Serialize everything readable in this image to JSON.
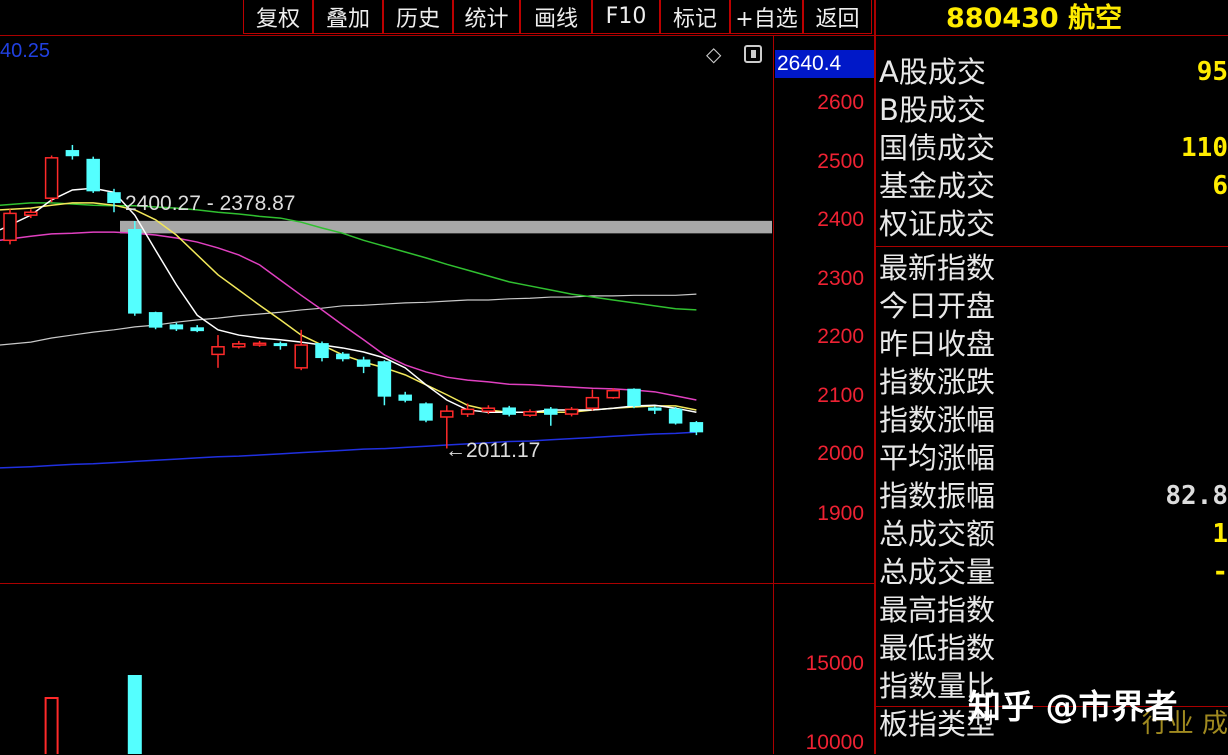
{
  "toolbar": {
    "buttons": [
      "复权",
      "叠加",
      "历史",
      "统计",
      "画线",
      "F10",
      "标记",
      "+自选",
      "返回"
    ]
  },
  "chart_header": {
    "ma_text_partial": "40.25",
    "diamond_icon": "diamond-icon",
    "toggle_icon": "square-toggle-icon"
  },
  "price_cursor": "2640.4",
  "annotations": {
    "range_label": "2400.27 - 2378.87",
    "low_label": "←2011.17"
  },
  "colors": {
    "up": "#ff2a2a",
    "down": "#54ffff",
    "ma5": "#ffffff",
    "ma10": "#f2e85a",
    "ma20": "#e040c0",
    "ma60": "#30c030",
    "ma120": "#c8c8c8",
    "ma250": "#2030e0",
    "axis": "#e02020",
    "band": "#a8a8a8"
  },
  "chart_data": {
    "type": "candlestick",
    "price_axis": {
      "ticks": [
        2600,
        2500,
        2400,
        2300,
        2200,
        2100,
        2000,
        1900
      ]
    },
    "volume_axis": {
      "ticks": [
        15000,
        10000
      ]
    },
    "range_band": [
      2378.87,
      2400.27
    ],
    "low_mark": 2011.17,
    "candles": [
      [
        2367,
        2420,
        2360,
        2413
      ],
      [
        2410,
        2420,
        2405,
        2415
      ],
      [
        2439,
        2512,
        2432,
        2508
      ],
      [
        2520,
        2530,
        2505,
        2512
      ],
      [
        2505,
        2510,
        2448,
        2452
      ],
      [
        2448,
        2455,
        2415,
        2432
      ],
      [
        2385,
        2400,
        2238,
        2243
      ],
      [
        2243,
        2245,
        2215,
        2219
      ],
      [
        2222,
        2226,
        2212,
        2216
      ],
      [
        2217,
        2222,
        2210,
        2213
      ],
      [
        2172,
        2205,
        2149,
        2185
      ],
      [
        2185,
        2195,
        2182,
        2190
      ],
      [
        2188,
        2195,
        2185,
        2191
      ],
      [
        2190,
        2194,
        2180,
        2188
      ],
      [
        2149,
        2214,
        2145,
        2188
      ],
      [
        2190,
        2194,
        2160,
        2167
      ],
      [
        2172,
        2176,
        2160,
        2165
      ],
      [
        2162,
        2168,
        2140,
        2152
      ],
      [
        2159,
        2162,
        2085,
        2101
      ],
      [
        2102,
        2108,
        2090,
        2094
      ],
      [
        2087,
        2090,
        2056,
        2060
      ],
      [
        2065,
        2085,
        2011.17,
        2075
      ],
      [
        2070,
        2088,
        2065,
        2078
      ],
      [
        2075,
        2085,
        2070,
        2080
      ],
      [
        2080,
        2084,
        2066,
        2070
      ],
      [
        2068,
        2078,
        2065,
        2074
      ],
      [
        2078,
        2082,
        2050,
        2070
      ],
      [
        2070,
        2082,
        2066,
        2078
      ],
      [
        2080,
        2112,
        2076,
        2098
      ],
      [
        2098,
        2114,
        2096,
        2110
      ],
      [
        2112,
        2114,
        2080,
        2085
      ],
      [
        2080,
        2083,
        2070,
        2077
      ],
      [
        2078,
        2082,
        2052,
        2055
      ],
      [
        2055,
        2058,
        2034,
        2040
      ]
    ],
    "ma": {
      "ma5": [
        2385,
        2410,
        2436,
        2453,
        2456,
        2449,
        2410,
        2350,
        2291,
        2239,
        2214,
        2205,
        2200,
        2197,
        2193,
        2188,
        2183,
        2176,
        2166,
        2149,
        2120,
        2094,
        2077,
        2073,
        2073,
        2073,
        2077,
        2077,
        2077,
        2080,
        2084,
        2085,
        2080,
        2073
      ],
      "ma10": [
        2419,
        2422,
        2427,
        2431,
        2431,
        2427,
        2419,
        2402,
        2376,
        2342,
        2308,
        2282,
        2256,
        2231,
        2205,
        2188,
        2171,
        2159,
        2149,
        2137,
        2120,
        2103,
        2085,
        2077,
        2073,
        2073,
        2073,
        2073,
        2077,
        2080,
        2082,
        2084,
        2084,
        2077
      ],
      "ma20": [
        2367,
        2374,
        2378,
        2379,
        2381,
        2381,
        2379,
        2376,
        2371,
        2364,
        2354,
        2342,
        2325,
        2299,
        2273,
        2248,
        2222,
        2197,
        2171,
        2154,
        2142,
        2133,
        2128,
        2125,
        2121,
        2120,
        2118,
        2116,
        2114,
        2113,
        2111,
        2108,
        2101,
        2094
      ],
      "ma60": [
        2427,
        2431,
        2431,
        2429,
        2427,
        2426,
        2426,
        2424,
        2422,
        2419,
        2415,
        2412,
        2408,
        2405,
        2398,
        2388,
        2379,
        2367,
        2357,
        2347,
        2337,
        2326,
        2316,
        2306,
        2296,
        2289,
        2282,
        2275,
        2270,
        2265,
        2260,
        2255,
        2250,
        2248
      ],
      "ma120": [
        2188,
        2193,
        2200,
        2205,
        2210,
        2214,
        2219,
        2222,
        2227,
        2231,
        2234,
        2238,
        2241,
        2244,
        2248,
        2251,
        2255,
        2256,
        2258,
        2260,
        2261,
        2263,
        2265,
        2265,
        2267,
        2268,
        2270,
        2270,
        2272,
        2272,
        2273,
        2273,
        2273,
        2275
      ],
      "ma250": [
        1978,
        1980,
        1982,
        1984,
        1985,
        1987,
        1989,
        1991,
        1993,
        1995,
        1997,
        1998,
        2000,
        2002,
        2004,
        2006,
        2008,
        2010,
        2011,
        2013,
        2015,
        2017,
        2019,
        2021,
        2023,
        2024,
        2026,
        2028,
        2030,
        2032,
        2034,
        2036,
        2037,
        2039
      ]
    },
    "volume": [
      {
        "index": 2,
        "value": 12911,
        "dir": "up"
      },
      {
        "index": 6,
        "value": 14304,
        "dir": "down"
      }
    ]
  },
  "panel": {
    "title": "880430 航空",
    "rows": [
      {
        "label": "A股成交",
        "value": "95"
      },
      {
        "label": "B股成交",
        "value": ""
      },
      {
        "label": "国债成交",
        "value": "110"
      },
      {
        "label": "基金成交",
        "value": "6"
      },
      {
        "label": "权证成交",
        "value": ""
      },
      {
        "label": "最新指数",
        "value": ""
      },
      {
        "label": "今日开盘",
        "value": ""
      },
      {
        "label": "昨日收盘",
        "value": ""
      },
      {
        "label": "指数涨跌",
        "value": ""
      },
      {
        "label": "指数涨幅",
        "value": ""
      },
      {
        "label": "平均涨幅",
        "value": ""
      },
      {
        "label": "指数振幅",
        "value": "82.8"
      },
      {
        "label": "总成交额",
        "value": "1"
      },
      {
        "label": "总成交量",
        "value": "-"
      },
      {
        "label": "最高指数",
        "value": ""
      },
      {
        "label": "最低指数",
        "value": ""
      },
      {
        "label": "指数量比",
        "value": ""
      },
      {
        "label": "板指类型",
        "value": "行业 成"
      }
    ]
  },
  "watermark": "知乎 @市界者"
}
